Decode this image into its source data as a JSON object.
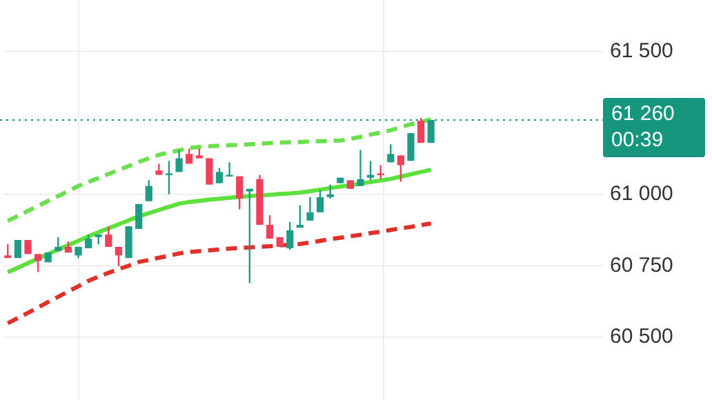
{
  "chart_data": {
    "type": "candlestick",
    "categories": [
      null,
      null,
      null,
      null,
      null,
      null,
      null,
      null,
      null,
      null,
      null,
      null,
      null,
      null,
      null,
      null,
      null,
      null,
      null,
      null,
      null,
      null,
      null,
      null,
      null,
      null,
      null,
      null,
      null,
      null,
      null,
      null,
      null,
      null,
      null,
      null,
      null,
      null,
      null,
      null,
      null,
      null,
      null
    ],
    "ohlc": [
      [
        60786,
        60825,
        60777,
        60777
      ],
      [
        60777,
        60840,
        60777,
        60840
      ],
      [
        60840,
        60840,
        60791,
        60791
      ],
      [
        60791,
        60791,
        60728,
        60767
      ],
      [
        60762,
        60796,
        60762,
        60796
      ],
      [
        60801,
        60850,
        60801,
        60816
      ],
      [
        60816,
        60835,
        60796,
        60796
      ],
      [
        60786,
        60816,
        60777,
        60816
      ],
      [
        60811,
        60859,
        60811,
        60845
      ],
      [
        60850,
        60859,
        60825,
        60859
      ],
      [
        60859,
        60888,
        60816,
        60816
      ],
      [
        60816,
        60816,
        60748,
        60786
      ],
      [
        60777,
        60888,
        60777,
        60888
      ],
      [
        60879,
        60966,
        60879,
        60966
      ],
      [
        60976,
        61049,
        60976,
        61029
      ],
      [
        61083,
        61107,
        61068,
        61068
      ],
      [
        61068,
        61117,
        61000,
        61073
      ],
      [
        61078,
        61155,
        61078,
        61126
      ],
      [
        61141,
        61160,
        61107,
        61107
      ],
      [
        61136,
        61160,
        61126,
        61126
      ],
      [
        61126,
        61126,
        61034,
        61034
      ],
      [
        61039,
        61092,
        61039,
        61078
      ],
      [
        61063,
        61112,
        61063,
        61068
      ],
      [
        61063,
        61063,
        60947,
        60985
      ],
      [
        61010,
        61019,
        60689,
        61019
      ],
      [
        61053,
        61068,
        60893,
        60893
      ],
      [
        60893,
        60927,
        60845,
        60845
      ],
      [
        60850,
        60850,
        60816,
        60816
      ],
      [
        60811,
        60903,
        60806,
        60874
      ],
      [
        60883,
        60961,
        60883,
        60893
      ],
      [
        60908,
        60990,
        60908,
        60937
      ],
      [
        60937,
        61015,
        60937,
        60990
      ],
      [
        60990,
        61034,
        60985,
        61000
      ],
      [
        61039,
        61058,
        61039,
        61058
      ],
      [
        61049,
        61049,
        61019,
        61019
      ],
      [
        61029,
        61155,
        61029,
        61053
      ],
      [
        61058,
        61117,
        61049,
        61068
      ],
      [
        61073,
        61102,
        61053,
        61068
      ],
      [
        61112,
        61175,
        61112,
        61141
      ],
      [
        61136,
        61136,
        61044,
        61102
      ],
      [
        61117,
        61214,
        61117,
        61214
      ],
      [
        61257,
        61267,
        61180,
        61180
      ],
      [
        61180,
        61260,
        61180,
        61260
      ]
    ],
    "colors": [
      "#ef3f5a",
      "#1f9c85",
      "#ef3f5a",
      "#ef3f5a",
      "#1f9c85",
      "#1f9c85",
      "#ef3f5a",
      "#1f9c85",
      "#1f9c85",
      "#1f9c85",
      "#ef3f5a",
      "#ef3f5a",
      "#1f9c85",
      "#1f9c85",
      "#1f9c85",
      "#ef3f5a",
      "#1f9c85",
      "#1f9c85",
      "#ef3f5a",
      "#ef3f5a",
      "#ef3f5a",
      "#1f9c85",
      "#1f9c85",
      "#ef3f5a",
      "#1f9c85",
      "#ef3f5a",
      "#ef3f5a",
      "#ef3f5a",
      "#1f9c85",
      "#1f9c85",
      "#1f9c85",
      "#1f9c85",
      "#1f9c85",
      "#1f9c85",
      "#ef3f5a",
      "#1f9c85",
      "#1f9c85",
      "#ef3f5a",
      "#1f9c85",
      "#ef3f5a",
      "#1f9c85",
      "#ef3f5a",
      "#1f9c85"
    ],
    "series": [
      {
        "type": "line",
        "color": "#6ae04c",
        "line_style": "dashed",
        "values": [
          60907,
          60924,
          60942,
          60959,
          60977,
          60994,
          61011,
          61029,
          61043,
          61057,
          61071,
          61085,
          61099,
          61113,
          61126,
          61138,
          61146,
          61154,
          61162,
          61166,
          61168,
          61170,
          61172,
          61173,
          61175,
          61177,
          61179,
          61181,
          61182,
          61183,
          61185,
          61186,
          61187,
          61188,
          61194,
          61201,
          61209,
          61216,
          61224,
          61235,
          61245,
          61253,
          61262
        ]
      },
      {
        "type": "line",
        "color": "#5ee03c",
        "line_style": "solid",
        "values": [
          60727,
          60743,
          60759,
          60775,
          60791,
          60806,
          60822,
          60837,
          60853,
          60867,
          60881,
          60895,
          60909,
          60923,
          60934,
          60945,
          60956,
          60967,
          60973,
          60977,
          60981,
          60984,
          60988,
          60991,
          60994,
          60996,
          60998,
          61001,
          61003,
          61006,
          61011,
          61016,
          61022,
          61027,
          61032,
          61037,
          61043,
          61048,
          61054,
          61062,
          61070,
          61078,
          61086
        ]
      },
      {
        "type": "line",
        "color": "#e0302a",
        "line_style": "dashed",
        "values": [
          60549,
          60567,
          60585,
          60604,
          60623,
          60641,
          60660,
          60678,
          60697,
          60712,
          60725,
          60738,
          60750,
          60763,
          60770,
          60778,
          60785,
          60793,
          60798,
          60801,
          60804,
          60807,
          60810,
          60812,
          60814,
          60816,
          60818,
          60821,
          60823,
          60826,
          60831,
          60837,
          60843,
          60848,
          60853,
          60858,
          60864,
          60869,
          60875,
          60881,
          60886,
          60892,
          60898
        ]
      }
    ],
    "ylim": [
      60280,
      61680
    ],
    "yticks": [
      {
        "value": 60500,
        "label": "60 500"
      },
      {
        "value": 60750,
        "label": "60 750"
      },
      {
        "value": 61000,
        "label": "61 000"
      },
      {
        "value": 61500,
        "label": "61 500"
      }
    ],
    "tick_labels": "y",
    "grid": "y",
    "legend": false,
    "marker": "none",
    "ref_lines": [
      {
        "axis": "y",
        "value": 61260,
        "label": "61 260 00:39",
        "color": "#16967d",
        "line_style": "dotted"
      }
    ]
  }
}
